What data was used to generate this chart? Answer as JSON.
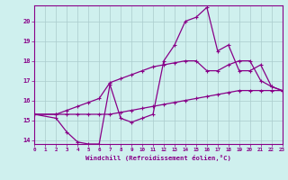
{
  "xlabel": "Windchill (Refroidissement éolien,°C)",
  "bg_color": "#cff0ee",
  "grid_color": "#aacccc",
  "line_color": "#880088",
  "x_ticks": [
    0,
    1,
    2,
    3,
    4,
    5,
    6,
    7,
    8,
    9,
    10,
    11,
    12,
    13,
    14,
    15,
    16,
    17,
    18,
    19,
    20,
    21,
    22,
    23
  ],
  "y_ticks": [
    14,
    15,
    16,
    17,
    18,
    19,
    20
  ],
  "xlim": [
    0,
    23
  ],
  "ylim": [
    13.8,
    20.8
  ],
  "line1_x": [
    0,
    2,
    3,
    4,
    5,
    6,
    7,
    8,
    9,
    10,
    11,
    12,
    13,
    14,
    15,
    16,
    17,
    18,
    19,
    20,
    21,
    22,
    23
  ],
  "line1_y": [
    15.3,
    15.1,
    14.4,
    13.9,
    13.8,
    13.8,
    16.8,
    15.1,
    14.9,
    15.1,
    15.3,
    18.0,
    18.8,
    20.0,
    20.2,
    20.7,
    18.5,
    18.8,
    17.5,
    17.5,
    17.8,
    16.7,
    16.5
  ],
  "line2_x": [
    0,
    2,
    3,
    4,
    5,
    6,
    7,
    8,
    9,
    10,
    11,
    12,
    13,
    14,
    15,
    16,
    17,
    18,
    19,
    20,
    21,
    22,
    23
  ],
  "line2_y": [
    15.3,
    15.3,
    15.5,
    15.7,
    15.9,
    16.1,
    16.9,
    17.1,
    17.3,
    17.5,
    17.7,
    17.8,
    17.9,
    18.0,
    18.0,
    17.5,
    17.5,
    17.8,
    18.0,
    18.0,
    17.0,
    16.7,
    16.5
  ],
  "line3_x": [
    0,
    2,
    3,
    4,
    5,
    6,
    7,
    8,
    9,
    10,
    11,
    12,
    13,
    14,
    15,
    16,
    17,
    18,
    19,
    20,
    21,
    22,
    23
  ],
  "line3_y": [
    15.3,
    15.3,
    15.3,
    15.3,
    15.3,
    15.3,
    15.3,
    15.4,
    15.5,
    15.6,
    15.7,
    15.8,
    15.9,
    16.0,
    16.1,
    16.2,
    16.3,
    16.4,
    16.5,
    16.5,
    16.5,
    16.5,
    16.5
  ]
}
